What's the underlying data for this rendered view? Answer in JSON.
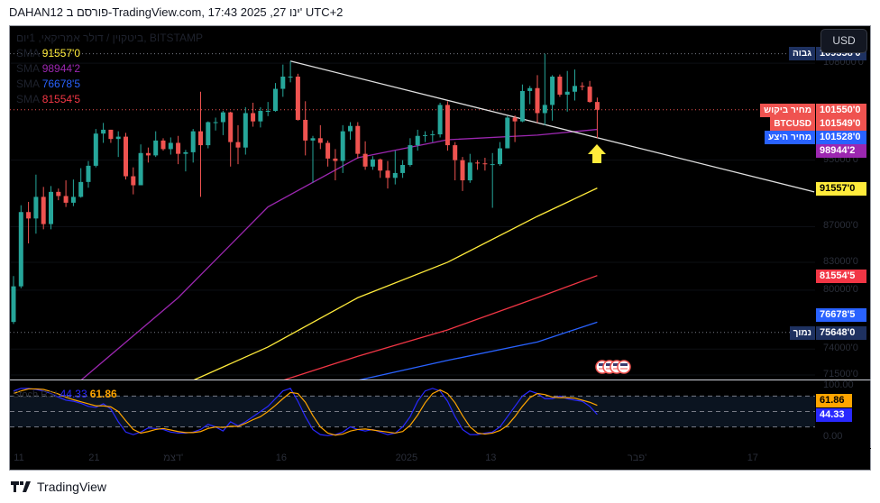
{
  "header": {
    "text": "DAHAN12 פורסם ב-TradingView.com, 17:43 2025 ,27 ינו' UTC+2"
  },
  "chart_title": "ביטקוין / דולר אמריקאי, 1יום, BITSTAMP",
  "currency_button": "USD",
  "legend": [
    {
      "name": "SMA",
      "value": "91557'0",
      "color": "#ffeb3b"
    },
    {
      "name": "SMA",
      "value": "98944'2",
      "color": "#9c27b0"
    },
    {
      "name": "SMA",
      "value": "76678'5",
      "color": "#2962ff"
    },
    {
      "name": "SMA",
      "value": "81554'5",
      "color": "#f23645"
    }
  ],
  "indicator": {
    "name": "Stoch RSI",
    "k_value": "44.33",
    "d_value": "61.86",
    "k_color": "#2929ff",
    "d_color": "#ffa500"
  },
  "price_badges": [
    {
      "label": "גבוה",
      "value": "109358'0",
      "price": 109358,
      "color": "#1e3160"
    },
    {
      "label": "מחיר ביקוש",
      "value": "101550'0",
      "price": 101550,
      "color": "#ef5350"
    },
    {
      "label": "BTCUSD",
      "value": "101549'0",
      "price": 101549,
      "color": "#ef5350"
    },
    {
      "label": "מחיר היצע",
      "value": "101528'0",
      "price": 101528,
      "color": "#2962ff"
    },
    {
      "label": "",
      "value": "98944'2",
      "price": 98944,
      "color": "#9c27b0"
    },
    {
      "label": "",
      "value": "91557'0",
      "price": 91557,
      "color": "#ffeb3b"
    },
    {
      "label": "",
      "value": "81554'5",
      "price": 81554,
      "color": "#f23645"
    },
    {
      "label": "",
      "value": "76678'5",
      "price": 76678,
      "color": "#2962ff"
    },
    {
      "label": "נמוך",
      "value": "75648'0",
      "price": 75648,
      "color": "#1e3160"
    }
  ],
  "stoch_badges": [
    {
      "value": "61.86",
      "level": 61.86,
      "color": "#ffa500",
      "text": "#000"
    },
    {
      "value": "44.33",
      "level": 44.33,
      "color": "#2929ff",
      "text": "#fff"
    }
  ],
  "footer": {
    "brand": "TradingView"
  },
  "chart_data": {
    "type": "candlestick",
    "title": "ביטקוין / דולר אמריקאי, 1יום, BITSTAMP",
    "scale": "log",
    "first_date": "2024-11-10",
    "y_ticks": [
      {
        "v": 108000,
        "t": "108000'0"
      },
      {
        "v": 95000,
        "t": "95000'0"
      },
      {
        "v": 87000,
        "t": "87000'0"
      },
      {
        "v": 83000,
        "t": "83000'0"
      },
      {
        "v": 80000,
        "t": "80000'0"
      },
      {
        "v": 74000,
        "t": "74000'0"
      },
      {
        "v": 71500,
        "t": "71500'0"
      }
    ],
    "x_ticks": [
      {
        "i": 1,
        "t": "11"
      },
      {
        "i": 11,
        "t": "21"
      },
      {
        "i": 21,
        "t": "דצמ'"
      },
      {
        "i": 36,
        "t": "16"
      },
      {
        "i": 52,
        "t": "2025"
      },
      {
        "i": 64,
        "t": "13"
      },
      {
        "i": 83,
        "t": "פבר'"
      },
      {
        "i": 99,
        "t": "17"
      }
    ],
    "stoch_ticks": [
      {
        "v": 100,
        "t": "100.00"
      },
      {
        "v": 0,
        "t": "0.00"
      }
    ],
    "ohlc": [
      [
        76700,
        81500,
        76500,
        80400
      ],
      [
        80400,
        89500,
        80200,
        88700
      ],
      [
        88700,
        89900,
        85100,
        87950
      ],
      [
        87950,
        93200,
        86200,
        90500
      ],
      [
        90500,
        91700,
        86700,
        87300
      ],
      [
        87300,
        91800,
        86700,
        91100
      ],
      [
        91100,
        91500,
        90100,
        90600
      ],
      [
        90600,
        92500,
        89300,
        89800
      ],
      [
        89800,
        92600,
        89400,
        90500
      ],
      [
        90500,
        94000,
        90400,
        92300
      ],
      [
        92300,
        94900,
        91600,
        94300
      ],
      [
        94300,
        99000,
        94100,
        98400
      ],
      [
        98400,
        99800,
        97200,
        98900
      ],
      [
        98900,
        98900,
        97200,
        97700
      ],
      [
        97700,
        98700,
        95400,
        98000
      ],
      [
        98000,
        98500,
        92600,
        93000
      ],
      [
        93000,
        94100,
        90800,
        91900
      ],
      [
        91900,
        97000,
        91900,
        95900
      ],
      [
        95900,
        96600,
        94700,
        95600
      ],
      [
        95600,
        98700,
        95400,
        97500
      ],
      [
        97500,
        97800,
        96200,
        96400
      ],
      [
        96400,
        97900,
        95700,
        97200
      ],
      [
        97200,
        98100,
        94500,
        95800
      ],
      [
        95800,
        96300,
        93600,
        96000
      ],
      [
        96000,
        99000,
        94700,
        98700
      ],
      [
        98700,
        104000,
        90500,
        96900
      ],
      [
        96900,
        100000,
        96500,
        99900
      ],
      [
        99900,
        100500,
        98800,
        99900
      ],
      [
        99900,
        101400,
        98200,
        101200
      ],
      [
        101200,
        101300,
        94200,
        97300
      ],
      [
        97300,
        99500,
        94500,
        96600
      ],
      [
        96600,
        101900,
        95700,
        101100
      ],
      [
        101100,
        102500,
        99300,
        100000
      ],
      [
        100000,
        101900,
        99200,
        101400
      ],
      [
        101400,
        102600,
        100700,
        101400
      ],
      [
        101400,
        105200,
        101300,
        104400
      ],
      [
        104400,
        107800,
        103300,
        106100
      ],
      [
        106100,
        108300,
        105300,
        106100
      ],
      [
        106100,
        106500,
        100100,
        100200
      ],
      [
        100200,
        102700,
        95600,
        97500
      ],
      [
        97500,
        98100,
        92200,
        97800
      ],
      [
        97800,
        99500,
        96400,
        97200
      ],
      [
        97200,
        97500,
        94200,
        95200
      ],
      [
        95200,
        96400,
        92500,
        94900
      ],
      [
        94900,
        99500,
        93400,
        98700
      ],
      [
        98700,
        99900,
        97600,
        99400
      ],
      [
        99400,
        99900,
        95200,
        95800
      ],
      [
        95800,
        97400,
        93800,
        94200
      ],
      [
        94200,
        95500,
        93800,
        95100
      ],
      [
        95100,
        95200,
        92800,
        93700
      ],
      [
        93700,
        94900,
        91500,
        92800
      ],
      [
        92800,
        96200,
        92000,
        93400
      ],
      [
        93400,
        95000,
        92800,
        94400
      ],
      [
        94400,
        97800,
        94200,
        96900
      ],
      [
        96900,
        98900,
        96200,
        98100
      ],
      [
        98100,
        98700,
        97300,
        98200
      ],
      [
        98200,
        98800,
        97300,
        98300
      ],
      [
        98300,
        102500,
        97900,
        102200
      ],
      [
        102200,
        102700,
        96200,
        96900
      ],
      [
        96900,
        97300,
        92500,
        95000
      ],
      [
        95000,
        95400,
        91200,
        92500
      ],
      [
        92500,
        95800,
        92200,
        94700
      ],
      [
        94700,
        95000,
        93800,
        94600
      ],
      [
        94600,
        95300,
        93700,
        94500
      ],
      [
        94500,
        95900,
        89200,
        94500
      ],
      [
        94500,
        97300,
        94300,
        96500
      ],
      [
        96500,
        100700,
        96500,
        100500
      ],
      [
        100500,
        100800,
        97300,
        100000
      ],
      [
        100000,
        105000,
        99900,
        104100
      ],
      [
        104100,
        104800,
        102300,
        104500
      ],
      [
        104500,
        106300,
        99800,
        101100
      ],
      [
        101100,
        109358,
        99500,
        102200
      ],
      [
        102200,
        106300,
        100100,
        106100
      ],
      [
        106100,
        106400,
        103300,
        103600
      ],
      [
        103600,
        106900,
        101300,
        104000
      ],
      [
        104000,
        107100,
        102800,
        104800
      ],
      [
        104800,
        105300,
        104200,
        104700
      ],
      [
        104700,
        105500,
        102500,
        102600
      ],
      [
        102600,
        103200,
        97800,
        101549
      ]
    ],
    "sma": [
      {
        "name": "SMA",
        "color": "#9c27b0",
        "points": [
          [
            9,
            71000
          ],
          [
            22,
            79200
          ],
          [
            34,
            89300
          ],
          [
            46,
            95300
          ],
          [
            58,
            97600
          ],
          [
            70,
            98200
          ],
          [
            78,
            98944
          ]
        ]
      },
      {
        "name": "SMA",
        "color": "#ffeb3b",
        "points": [
          [
            24,
            71000
          ],
          [
            34,
            74200
          ],
          [
            46,
            79200
          ],
          [
            58,
            83000
          ],
          [
            70,
            88200
          ],
          [
            78,
            91557
          ]
        ]
      },
      {
        "name": "SMA",
        "color": "#f23645",
        "points": [
          [
            36,
            71000
          ],
          [
            46,
            73300
          ],
          [
            58,
            75900
          ],
          [
            70,
            79200
          ],
          [
            78,
            81554
          ]
        ]
      },
      {
        "name": "SMA",
        "color": "#2962ff",
        "points": [
          [
            46,
            71000
          ],
          [
            58,
            72900
          ],
          [
            70,
            74700
          ],
          [
            78,
            76678
          ]
        ]
      }
    ],
    "trendline": [
      [
        37,
        108300
      ],
      [
        107,
        91100
      ]
    ],
    "stoch_k": [
      90,
      95,
      95,
      93,
      90,
      85,
      78,
      72,
      70,
      66,
      60,
      58,
      65,
      55,
      30,
      10,
      5,
      10,
      18,
      17,
      15,
      10,
      8,
      8,
      10,
      15,
      25,
      20,
      12,
      30,
      22,
      30,
      40,
      50,
      60,
      75,
      90,
      95,
      70,
      40,
      15,
      5,
      3,
      5,
      10,
      20,
      15,
      12,
      15,
      10,
      5,
      8,
      20,
      40,
      70,
      90,
      95,
      90,
      70,
      40,
      15,
      5,
      5,
      8,
      10,
      20,
      40,
      60,
      80,
      90,
      85,
      75,
      75,
      80,
      75,
      72,
      70,
      60,
      44.33
    ],
    "stoch_d": [
      85,
      90,
      94,
      94,
      93,
      89,
      84,
      78,
      73,
      69,
      65,
      61,
      61,
      59,
      50,
      32,
      15,
      8,
      11,
      15,
      17,
      14,
      11,
      9,
      9,
      11,
      17,
      20,
      19,
      21,
      21,
      27,
      34,
      40,
      50,
      62,
      75,
      87,
      85,
      68,
      42,
      20,
      8,
      4,
      6,
      12,
      15,
      16,
      14,
      12,
      10,
      8,
      11,
      23,
      43,
      67,
      85,
      92,
      85,
      67,
      42,
      20,
      8,
      6,
      8,
      13,
      23,
      40,
      60,
      77,
      85,
      83,
      78,
      77,
      77,
      76,
      72,
      68,
      61.86
    ]
  }
}
